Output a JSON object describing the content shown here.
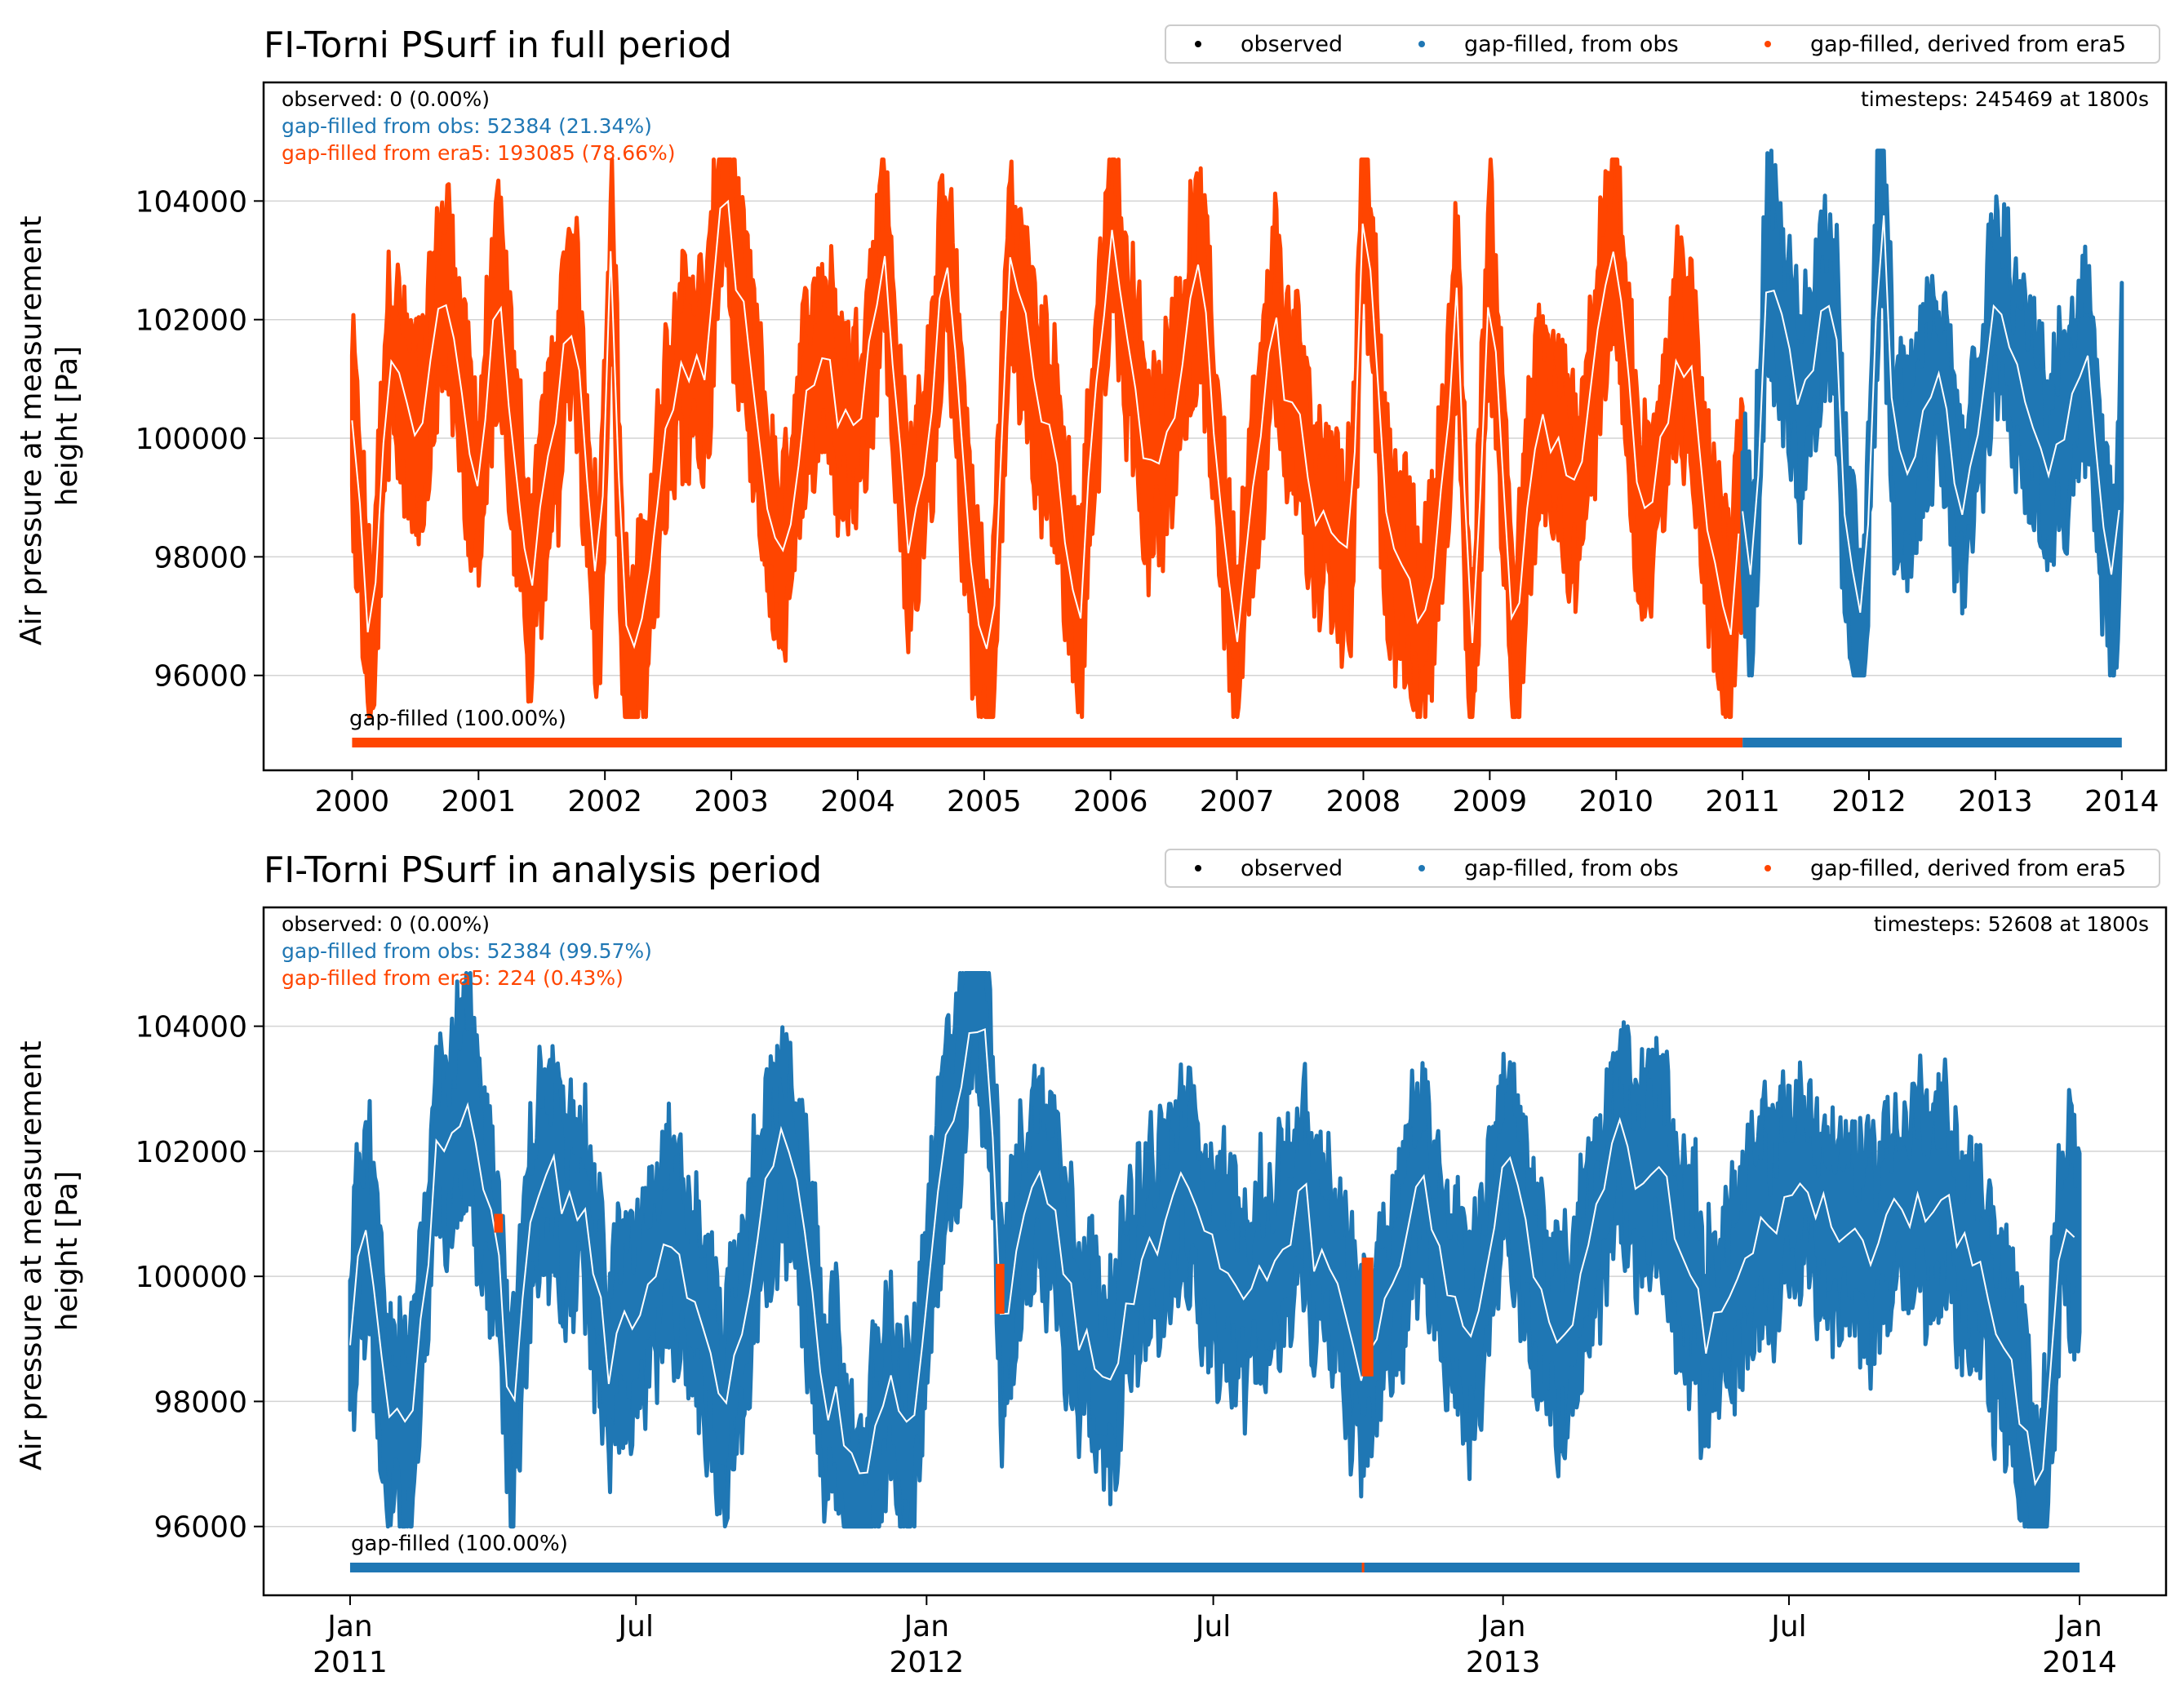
{
  "colors": {
    "observed": "#000000",
    "obs": "#1f77b4",
    "era5": "#ff4500",
    "mean": "#ffffff",
    "grid": "#d3d3d3"
  },
  "legend": [
    "observed",
    "gap-filled, from obs",
    "gap-filled, derived from era5"
  ],
  "chart_data": [
    {
      "type": "line",
      "title": "FI-Torni PSurf in full period",
      "ylabel": "Air pressure at measurement height [Pa]",
      "ylabel_lines": [
        "Air pressure at measurement",
        "height [Pa]"
      ],
      "xlim": [
        1999.3,
        2014.35
      ],
      "ylim": [
        94400,
        106000
      ],
      "yticks": [
        96000,
        98000,
        100000,
        102000,
        104000
      ],
      "xticks": [
        2000,
        2001,
        2002,
        2003,
        2004,
        2005,
        2006,
        2007,
        2008,
        2009,
        2010,
        2011,
        2012,
        2013,
        2014
      ],
      "xtick_labels": [
        [
          "2000"
        ],
        [
          "2001"
        ],
        [
          "2002"
        ],
        [
          "2003"
        ],
        [
          "2004"
        ],
        [
          "2005"
        ],
        [
          "2006"
        ],
        [
          "2007"
        ],
        [
          "2008"
        ],
        [
          "2009"
        ],
        [
          "2010"
        ],
        [
          "2011"
        ],
        [
          "2012"
        ],
        [
          "2013"
        ],
        [
          "2014"
        ]
      ],
      "grid": "horizontal",
      "legend_position": "top-right, outside",
      "stats": {
        "observed": "observed: 0 (0.00%)",
        "obs": "gap-filled from obs: 52384 (21.34%)",
        "era5": "gap-filled from era5: 193085 (78.66%)",
        "timesteps": "timesteps: 245469 at 1800s"
      },
      "bar_label": "gap-filled (100.00%)",
      "coverage": [
        {
          "source": "era5",
          "from": 2000.0,
          "to": 2011.0
        },
        {
          "source": "obs",
          "from": 2011.0,
          "to": 2014.0
        }
      ],
      "series": [
        {
          "name": "gap-filled, derived from era5",
          "source": "era5",
          "from": 2000.0,
          "to": 2011.0,
          "min": 95300,
          "max": 104700
        },
        {
          "name": "gap-filled, from obs",
          "source": "obs",
          "from": 2011.0,
          "to": 2014.0,
          "min": 96000,
          "max": 104850
        }
      ],
      "anchors": [
        [
          2000.0,
          100200
        ],
        [
          2000.1,
          97500
        ],
        [
          2000.15,
          96000
        ],
        [
          2000.3,
          101500
        ],
        [
          2000.5,
          100000
        ],
        [
          2000.75,
          102700
        ],
        [
          2001.0,
          99000
        ],
        [
          2001.15,
          102500
        ],
        [
          2001.4,
          97500
        ],
        [
          2001.75,
          102000
        ],
        [
          2001.95,
          97200
        ],
        [
          2002.05,
          103700
        ],
        [
          2002.15,
          96500
        ],
        [
          2002.25,
          96000
        ],
        [
          2002.6,
          101500
        ],
        [
          2002.8,
          101000
        ],
        [
          2002.95,
          104700
        ],
        [
          2003.05,
          102300
        ],
        [
          2003.4,
          97400
        ],
        [
          2003.7,
          101800
        ],
        [
          2004.0,
          100000
        ],
        [
          2004.2,
          103500
        ],
        [
          2004.4,
          98000
        ],
        [
          2004.7,
          102800
        ],
        [
          2004.9,
          98000
        ],
        [
          2005.05,
          95700
        ],
        [
          2005.2,
          102800
        ],
        [
          2005.5,
          100500
        ],
        [
          2005.75,
          96600
        ],
        [
          2006.0,
          104000
        ],
        [
          2006.3,
          99000
        ],
        [
          2006.7,
          102800
        ],
        [
          2007.0,
          96300
        ],
        [
          2007.3,
          101800
        ],
        [
          2007.6,
          99000
        ],
        [
          2007.9,
          98000
        ],
        [
          2008.0,
          104700
        ],
        [
          2008.2,
          98000
        ],
        [
          2008.5,
          96800
        ],
        [
          2008.75,
          102000
        ],
        [
          2008.85,
          95300
        ],
        [
          2009.0,
          103000
        ],
        [
          2009.2,
          96700
        ],
        [
          2009.4,
          100500
        ],
        [
          2009.7,
          99000
        ],
        [
          2010.0,
          104000
        ],
        [
          2010.2,
          98000
        ],
        [
          2010.5,
          101800
        ],
        [
          2010.9,
          96800
        ],
        [
          2011.0,
          99000
        ],
        [
          2011.08,
          97600
        ],
        [
          2011.2,
          103200
        ],
        [
          2011.45,
          100500
        ],
        [
          2011.7,
          102500
        ],
        [
          2011.85,
          97500
        ],
        [
          2011.95,
          96000
        ],
        [
          2012.1,
          104800
        ],
        [
          2012.2,
          99200
        ],
        [
          2012.5,
          101000
        ],
        [
          2012.75,
          98300
        ],
        [
          2013.0,
          102200
        ],
        [
          2013.4,
          99500
        ],
        [
          2013.75,
          101000
        ],
        [
          2013.95,
          97000
        ],
        [
          2014.0,
          100400
        ]
      ]
    },
    {
      "type": "line",
      "title": "FI-Torni PSurf in analysis period",
      "ylabel": "Air pressure at measurement height [Pa]",
      "ylabel_lines": [
        "Air pressure at measurement",
        "height [Pa]"
      ],
      "xlim": [
        2010.85,
        2014.15
      ],
      "ylim": [
        94900,
        105900
      ],
      "yticks": [
        96000,
        98000,
        100000,
        102000,
        104000
      ],
      "xticks": [
        2011.0,
        2011.4959,
        2012.0,
        2012.4973,
        2013.0,
        2013.4959,
        2014.0
      ],
      "xtick_labels": [
        [
          "Jan",
          "2011"
        ],
        [
          "Jul"
        ],
        [
          "Jan",
          "2012"
        ],
        [
          "Jul"
        ],
        [
          "Jan",
          "2013"
        ],
        [
          "Jul"
        ],
        [
          "Jan",
          "2014"
        ]
      ],
      "grid": "horizontal",
      "legend_position": "top-right, outside",
      "stats": {
        "observed": "observed: 0 (0.00%)",
        "obs": "gap-filled from obs: 52384 (99.57%)",
        "era5": "gap-filled from era5: 224 (0.43%)",
        "timesteps": "timesteps: 52608 at 1800s"
      },
      "bar_label": "gap-filled (100.00%)",
      "coverage": [
        {
          "source": "obs",
          "from": 2011.0,
          "to": 2014.0
        },
        {
          "source": "era5",
          "from": 2012.755,
          "to": 2012.758
        }
      ],
      "series": [
        {
          "name": "gap-filled, from obs",
          "source": "obs",
          "from": 2011.0,
          "to": 2014.0,
          "min": 96000,
          "max": 104850
        }
      ],
      "era5_segments": [
        {
          "from": 2011.25,
          "to": 2011.265,
          "min": 100700,
          "max": 101000
        },
        {
          "from": 2012.12,
          "to": 2012.135,
          "min": 99400,
          "max": 100200
        },
        {
          "from": 2012.755,
          "to": 2012.775,
          "min": 98400,
          "max": 100300
        }
      ],
      "anchors": [
        [
          2011.0,
          99200
        ],
        [
          2011.03,
          100800
        ],
        [
          2011.07,
          97500
        ],
        [
          2011.1,
          97200
        ],
        [
          2011.15,
          102000
        ],
        [
          2011.2,
          103000
        ],
        [
          2011.25,
          100800
        ],
        [
          2011.28,
          97500
        ],
        [
          2011.33,
          101800
        ],
        [
          2011.4,
          101500
        ],
        [
          2011.45,
          98500
        ],
        [
          2011.55,
          101000
        ],
        [
          2011.65,
          98000
        ],
        [
          2011.75,
          102500
        ],
        [
          2011.82,
          98500
        ],
        [
          2011.88,
          96000
        ],
        [
          2011.93,
          98000
        ],
        [
          2011.97,
          97000
        ],
        [
          2012.02,
          101000
        ],
        [
          2012.08,
          104850
        ],
        [
          2012.11,
          103800
        ],
        [
          2012.13,
          99500
        ],
        [
          2012.2,
          101800
        ],
        [
          2012.3,
          98500
        ],
        [
          2012.45,
          101500
        ],
        [
          2012.55,
          99500
        ],
        [
          2012.65,
          101000
        ],
        [
          2012.72,
          99500
        ],
        [
          2012.76,
          98500
        ],
        [
          2012.85,
          101500
        ],
        [
          2012.95,
          99000
        ],
        [
          2013.0,
          102000
        ],
        [
          2013.1,
          98500
        ],
        [
          2013.2,
          102000
        ],
        [
          2013.28,
          101800
        ],
        [
          2013.35,
          99000
        ],
        [
          2013.5,
          101500
        ],
        [
          2013.6,
          100500
        ],
        [
          2013.75,
          101500
        ],
        [
          2013.85,
          99500
        ],
        [
          2013.92,
          97000
        ],
        [
          2013.94,
          96800
        ],
        [
          2013.97,
          101000
        ],
        [
          2014.0,
          100400
        ]
      ]
    }
  ]
}
